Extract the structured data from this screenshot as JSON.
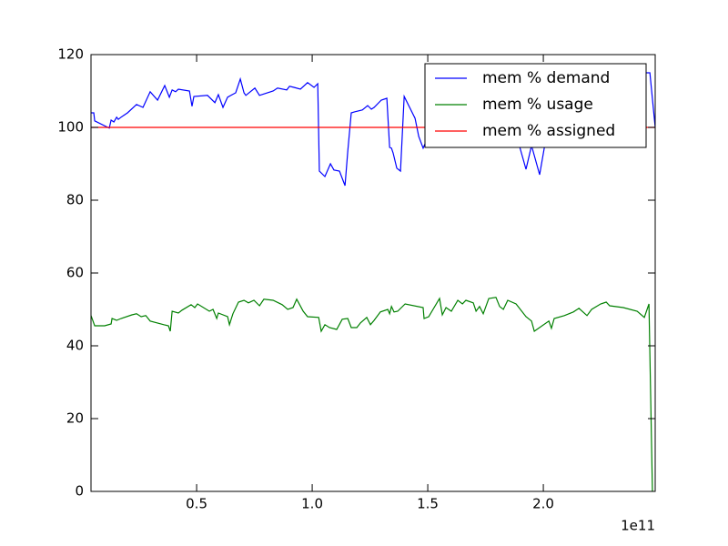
{
  "chart_data": {
    "type": "line",
    "xlim": [
      0.043,
      2.484
    ],
    "ylim": [
      0,
      120
    ],
    "xticks": [
      0.5,
      {
        "value": 1,
        "label": "1.0"
      },
      1.5,
      {
        "value": 2,
        "label": "2.0"
      }
    ],
    "yticks": [
      0,
      20,
      40,
      60,
      80,
      100,
      120
    ],
    "x_offset_label": "1e11",
    "legend": "upper right",
    "series": [
      {
        "name": "mem % demand",
        "color": "#0000ff",
        "x": [
          0.043,
          0.055,
          0.059,
          0.122,
          0.13,
          0.142,
          0.154,
          0.161,
          0.173,
          0.201,
          0.24,
          0.268,
          0.299,
          0.331,
          0.362,
          0.382,
          0.394,
          0.409,
          0.421,
          0.469,
          0.48,
          0.488,
          0.547,
          0.579,
          0.594,
          0.614,
          0.634,
          0.654,
          0.669,
          0.689,
          0.705,
          0.713,
          0.752,
          0.772,
          0.831,
          0.85,
          0.89,
          0.902,
          0.921,
          0.949,
          0.98,
          1.008,
          1.024,
          1.031,
          1.055,
          1.079,
          1.094,
          1.118,
          1.142,
          1.154,
          1.169,
          1.185,
          1.217,
          1.24,
          1.256,
          1.268,
          1.299,
          1.323,
          1.335,
          1.343,
          1.35,
          1.366,
          1.382,
          1.398,
          1.445,
          1.461,
          1.48,
          1.52,
          1.579,
          1.638,
          1.697,
          1.756,
          1.815,
          1.874,
          1.925,
          1.949,
          1.984,
          2.004,
          2.051,
          2.13,
          2.209,
          2.287,
          2.366,
          2.445,
          2.461,
          2.484
        ],
        "values": [
          104,
          104,
          101.8,
          99.8,
          102,
          101.5,
          102.8,
          102.2,
          102.8,
          104,
          106.3,
          105.5,
          109.8,
          107.5,
          111.5,
          108.3,
          110.3,
          109.8,
          110.5,
          110,
          105.8,
          108.5,
          108.8,
          106.8,
          109,
          105.5,
          108.3,
          109,
          109.5,
          113.3,
          109.5,
          108.8,
          110.8,
          108.8,
          110,
          110.8,
          110.3,
          111.3,
          111,
          110.5,
          112.3,
          111,
          112,
          88,
          86.5,
          90,
          88.3,
          88,
          84,
          93.5,
          104,
          104.3,
          104.8,
          106,
          105,
          105.5,
          107.5,
          108,
          94.5,
          94.3,
          93,
          88.8,
          88,
          108.5,
          102.5,
          97.5,
          94.3,
          100,
          104,
          98,
          106,
          102,
          108,
          100,
          88.5,
          95,
          87,
          94.3,
          104,
          108,
          106,
          110,
          108,
          115,
          115,
          100
        ]
      },
      {
        "name": "mem % usage",
        "color": "#008000",
        "x": [
          0.043,
          0.059,
          0.102,
          0.13,
          0.134,
          0.154,
          0.173,
          0.22,
          0.24,
          0.26,
          0.28,
          0.299,
          0.358,
          0.378,
          0.386,
          0.394,
          0.421,
          0.437,
          0.476,
          0.492,
          0.504,
          0.555,
          0.571,
          0.587,
          0.594,
          0.634,
          0.642,
          0.657,
          0.681,
          0.705,
          0.724,
          0.748,
          0.772,
          0.791,
          0.831,
          0.87,
          0.894,
          0.917,
          0.933,
          0.961,
          0.98,
          1.028,
          1.039,
          1.055,
          1.075,
          1.106,
          1.13,
          1.154,
          1.169,
          1.193,
          1.209,
          1.236,
          1.252,
          1.268,
          1.295,
          1.327,
          1.335,
          1.343,
          1.354,
          1.37,
          1.402,
          1.48,
          1.484,
          1.504,
          1.551,
          1.563,
          1.579,
          1.602,
          1.63,
          1.65,
          1.665,
          1.697,
          1.709,
          1.724,
          1.74,
          1.764,
          1.795,
          1.811,
          1.827,
          1.846,
          1.882,
          1.925,
          1.949,
          1.961,
          2.024,
          2.035,
          2.047,
          2.091,
          2.13,
          2.154,
          2.189,
          2.209,
          2.248,
          2.272,
          2.287,
          2.346,
          2.406,
          2.437,
          2.457,
          2.472
        ],
        "values": [
          48.3,
          45.5,
          45.5,
          46,
          47.5,
          47,
          47.5,
          48.5,
          48.8,
          48,
          48.3,
          46.8,
          45.8,
          45.5,
          44,
          49.5,
          49,
          49.8,
          51.3,
          50.5,
          51.5,
          49.5,
          50,
          47.5,
          49,
          48,
          45.8,
          48.8,
          52,
          52.5,
          51.8,
          52.5,
          51,
          52.8,
          52.5,
          51.3,
          50,
          50.5,
          52.8,
          49.5,
          48,
          47.8,
          44,
          45.8,
          45,
          44.5,
          47.3,
          47.5,
          45,
          45,
          46.3,
          47.8,
          45.8,
          47,
          49.3,
          50,
          48.8,
          50.8,
          49.3,
          49.5,
          51.5,
          50.5,
          47.5,
          48,
          53,
          48.5,
          50.5,
          49.5,
          52.5,
          51.5,
          52.5,
          51.8,
          49.5,
          50.8,
          48.8,
          53,
          53.3,
          50.8,
          50,
          52.5,
          51.5,
          48,
          46.8,
          44,
          46.8,
          44.8,
          47.5,
          48.3,
          49.3,
          50.3,
          48.3,
          50,
          51.5,
          52,
          51,
          50.5,
          49.5,
          47.8,
          51.5,
          0
        ]
      },
      {
        "name": "mem % assigned",
        "color": "#ff0000",
        "x": [
          0.043,
          2.484
        ],
        "values": [
          100,
          100
        ]
      }
    ]
  }
}
